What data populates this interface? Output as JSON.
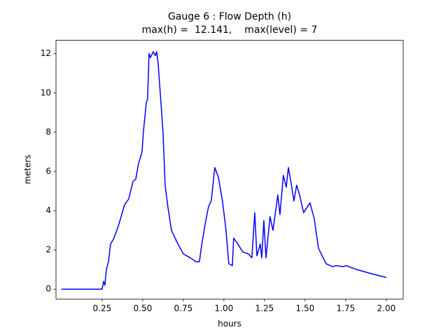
{
  "chart_data": {
    "type": "line",
    "title": "Gauge 6 : Flow Depth (h)",
    "subtitle": "max(h) =  12.141,    max(level) = 7",
    "xlabel": "hours",
    "ylabel": "meters",
    "x": [
      0,
      0.25,
      0.259,
      0.267,
      0.276,
      0.289,
      0.302,
      0.323,
      0.353,
      0.388,
      0.414,
      0.44,
      0.457,
      0.474,
      0.496,
      0.504,
      0.522,
      0.53,
      0.539,
      0.547,
      0.565,
      0.578,
      0.586,
      0.595,
      0.608,
      0.625,
      0.638,
      0.655,
      0.677,
      0.711,
      0.75,
      0.793,
      0.828,
      0.849,
      0.862,
      0.884,
      0.905,
      0.922,
      0.944,
      0.966,
      0.991,
      1.013,
      1.03,
      1.052,
      1.06,
      1.086,
      1.116,
      1.151,
      1.172,
      1.19,
      1.203,
      1.224,
      1.233,
      1.246,
      1.259,
      1.284,
      1.302,
      1.332,
      1.345,
      1.366,
      1.384,
      1.397,
      1.414,
      1.431,
      1.448,
      1.466,
      1.491,
      1.53,
      1.556,
      1.582,
      1.599,
      1.629,
      1.668,
      1.69,
      1.733,
      1.754,
      1.819,
      1.905,
      2.0
    ],
    "series": [
      {
        "name": "h",
        "color": "#0000ff",
        "values": [
          0,
          0,
          0.4,
          0.2,
          1.0,
          1.4,
          2.3,
          2.6,
          3.3,
          4.3,
          4.6,
          5.5,
          5.6,
          6.4,
          7.0,
          8.0,
          9.5,
          9.7,
          12.0,
          11.8,
          12.1,
          11.9,
          12.1,
          11.5,
          10.0,
          8.0,
          5.3,
          4.2,
          3.0,
          2.4,
          1.8,
          1.6,
          1.4,
          1.4,
          2.2,
          3.3,
          4.2,
          4.5,
          6.2,
          5.7,
          4.5,
          3.0,
          1.3,
          1.2,
          2.6,
          2.3,
          1.9,
          1.8,
          1.6,
          3.9,
          1.7,
          2.3,
          1.6,
          3.5,
          1.6,
          3.7,
          3.0,
          4.8,
          3.8,
          5.8,
          5.2,
          6.2,
          5.4,
          4.5,
          5.3,
          4.8,
          3.9,
          4.4,
          3.6,
          2.1,
          1.8,
          1.3,
          1.15,
          1.2,
          1.15,
          1.2,
          1.0,
          0.8,
          0.6
        ]
      }
    ],
    "xlim": [
      -0.034,
      2.104
    ],
    "xticks": [
      {
        "value": 0.25,
        "label": "0.25"
      },
      {
        "value": 0.5,
        "label": "0.50"
      },
      {
        "value": 0.75,
        "label": "0.75"
      },
      {
        "value": 1.0,
        "label": "1.00"
      },
      {
        "value": 1.25,
        "label": "1.25"
      },
      {
        "value": 1.5,
        "label": "1.50"
      },
      {
        "value": 1.75,
        "label": "1.75"
      },
      {
        "value": 2.0,
        "label": "2.00"
      }
    ],
    "ylim": [
      -0.5,
      12.68
    ],
    "yticks": [
      0,
      2,
      4,
      6,
      8,
      10,
      12
    ]
  }
}
